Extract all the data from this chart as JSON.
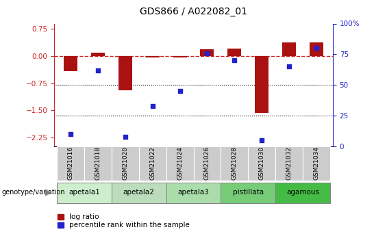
{
  "title": "GDS866 / A022082_01",
  "samples": [
    "GSM21016",
    "GSM21018",
    "GSM21020",
    "GSM21022",
    "GSM21024",
    "GSM21026",
    "GSM21028",
    "GSM21030",
    "GSM21032",
    "GSM21034"
  ],
  "log_ratio": [
    -0.42,
    0.1,
    -0.95,
    -0.04,
    -0.03,
    0.18,
    0.2,
    -1.58,
    0.37,
    0.37
  ],
  "percentile_rank": [
    10,
    62,
    8,
    33,
    45,
    76,
    70,
    5,
    65,
    80
  ],
  "groups": [
    {
      "name": "apetala1",
      "samples": [
        0,
        1
      ],
      "color": "#cceecc"
    },
    {
      "name": "apetala2",
      "samples": [
        2,
        3
      ],
      "color": "#bbddbb"
    },
    {
      "name": "apetala3",
      "samples": [
        4,
        5
      ],
      "color": "#aaddaa"
    },
    {
      "name": "pistillata",
      "samples": [
        6,
        7
      ],
      "color": "#77cc77"
    },
    {
      "name": "agamous",
      "samples": [
        8,
        9
      ],
      "color": "#44bb44"
    }
  ],
  "ylim_left": [
    -2.5,
    0.9
  ],
  "ylim_right": [
    0,
    100
  ],
  "yticks_left": [
    0.75,
    0,
    -0.75,
    -1.5,
    -2.25
  ],
  "yticks_right": [
    100,
    75,
    50,
    25,
    0
  ],
  "hline_pct": [
    50,
    25
  ],
  "bar_color": "#aa1111",
  "dot_color": "#2222cc",
  "ref_line_color": "#cc2222",
  "sample_box_color": "#cccccc",
  "background_color": "#ffffff",
  "legend_bar_label": "log ratio",
  "legend_dot_label": "percentile rank within the sample",
  "genotype_label": "genotype/variation"
}
